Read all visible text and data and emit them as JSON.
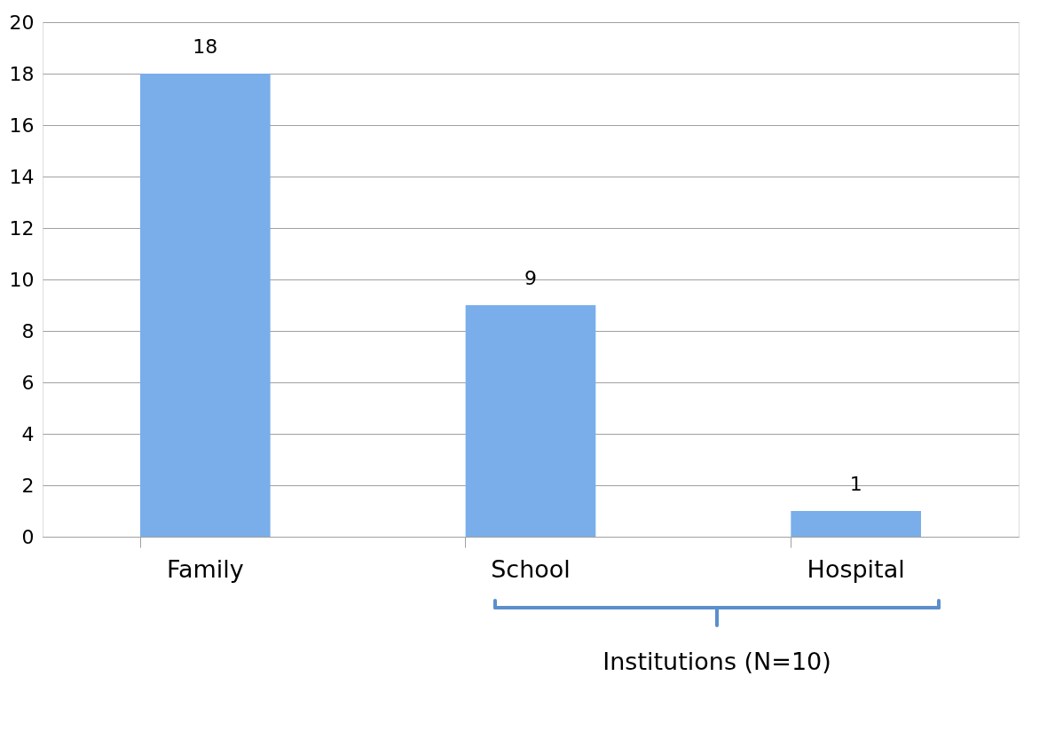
{
  "chart_data": {
    "type": "bar",
    "categories": [
      "Family",
      "School",
      "Hospital"
    ],
    "values": [
      18,
      9,
      1
    ],
    "color": "#79aeea",
    "ylim": [
      0,
      20
    ],
    "yticks": [
      0,
      2,
      4,
      6,
      8,
      10,
      12,
      14,
      16,
      18,
      20
    ],
    "grid": "y",
    "data_labels": true,
    "annotations": [
      "Institutions (N=10)"
    ]
  }
}
